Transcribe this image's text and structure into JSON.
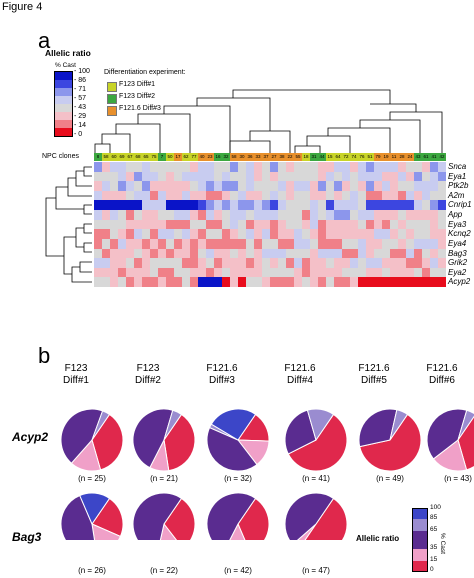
{
  "figure_title": "Figure 4",
  "panel_a": {
    "letter": "a",
    "legend_title": "Allelic ratio",
    "legend_unit": "% Cast",
    "legend_ticks": [
      "100",
      "86",
      "71",
      "57",
      "43",
      "29",
      "14",
      "0"
    ],
    "legend_colors": [
      "#0a14c8",
      "#3c46e0",
      "#8c96ec",
      "#c8ccf0",
      "#d8d8d8",
      "#f4c0c8",
      "#f08088",
      "#e80c1c"
    ],
    "diff_title": "Differentiation experiment:",
    "diff_items": [
      {
        "label": "F123 Diff#1",
        "color": "#c8d428"
      },
      {
        "label": "F123 Diff#2",
        "color": "#3ca840"
      },
      {
        "label": "F121.6 Diff#3",
        "color": "#e8902c"
      }
    ],
    "npc_label": "NPC clones",
    "clone_ids": [
      "8",
      "58",
      "60",
      "69",
      "67",
      "68",
      "65",
      "75",
      "7",
      "50",
      "17",
      "62",
      "77",
      "40",
      "23",
      "16",
      "32",
      "58",
      "30",
      "36",
      "33",
      "37",
      "27",
      "38",
      "22",
      "55",
      "18",
      "31",
      "44",
      "15",
      "64",
      "72",
      "74",
      "76",
      "51",
      "79",
      "19",
      "11",
      "28",
      "24",
      "43",
      "61",
      "41",
      "42"
    ],
    "genes": [
      "Snca",
      "Eya1",
      "Ptk2b",
      "A2m",
      "Cnrip1",
      "App",
      "Eya3",
      "Kcnq2",
      "Eya4",
      "Bag3",
      "Grik2",
      "Eya2",
      "Acyp2"
    ]
  },
  "panel_b": {
    "letter": "b",
    "columns": [
      "F123\nDiff#1",
      "F123\nDiff#2",
      "F121.6\nDiff#3",
      "F121.6\nDiff#4",
      "F121.6\nDiff#5",
      "F121.6\nDiff#6"
    ],
    "rows": [
      "Acyp2",
      "Bag3"
    ],
    "n_acyp2": [
      "(n = 25)",
      "(n = 21)",
      "(n = 32)",
      "(n = 41)",
      "(n = 49)",
      "(n = 43)"
    ],
    "n_bag3": [
      "(n = 26)",
      "(n = 22)",
      "(n = 42)",
      "(n = 47)"
    ],
    "legend_title": "Allelic ratio",
    "legend_unit": "% Cast",
    "legend_ticks": [
      "100",
      "85",
      "65",
      "35",
      "15",
      "0"
    ],
    "category_colors": {
      "85-100": "#3c46c8",
      "65-85": "#9a8cd0",
      "35-65": "#5a2c90",
      "15-35": "#f0a0c8",
      "0-15": "#e0284c"
    },
    "pie_fractions_order": [
      "0-15",
      "15-35",
      "35-65",
      "65-85",
      "85-100"
    ],
    "pies_acyp2": [
      [
        0.36,
        0.16,
        0.44,
        0.04,
        0
      ],
      [
        0.38,
        0.1,
        0.47,
        0.05,
        0
      ],
      [
        0.16,
        0.14,
        0.42,
        0.02,
        0.26
      ],
      [
        0.58,
        0.0,
        0.28,
        0.14,
        0
      ],
      [
        0.62,
        0.0,
        0.32,
        0.06,
        0
      ],
      [
        0.36,
        0.19,
        0.4,
        0.05,
        0
      ]
    ],
    "pies_bag3": [
      [
        0.22,
        0.16,
        0.46,
        0.0,
        0.16
      ],
      [
        0.3,
        0.14,
        0.56,
        0,
        0
      ],
      [
        0.34,
        0.14,
        0.52,
        0,
        0
      ],
      [
        0.5,
        0.04,
        0.46,
        0,
        0
      ]
    ]
  }
}
